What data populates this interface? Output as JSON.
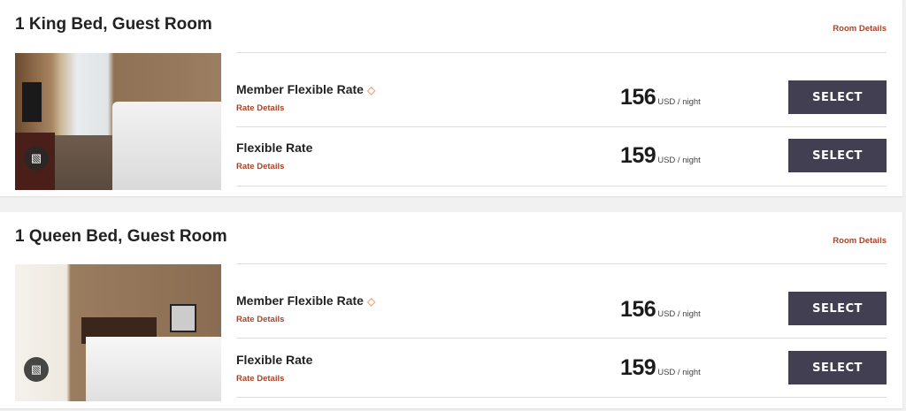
{
  "rooms": [
    {
      "title": "1 King Bed, Guest Room",
      "room_details": "Room Details",
      "image_icon": "gallery-icon",
      "rates": [
        {
          "name": "Member Flexible Rate",
          "icon": "tag-icon",
          "details": "Rate Details",
          "price": "156",
          "unit": "USD / night",
          "button": "SELECT"
        },
        {
          "name": "Flexible Rate",
          "details": "Rate Details",
          "price": "159",
          "unit": "USD / night",
          "button": "SELECT"
        }
      ]
    },
    {
      "title": "1 Queen Bed, Guest Room",
      "room_details": "Room Details",
      "image_icon": "gallery-icon",
      "rates": [
        {
          "name": "Member Flexible Rate",
          "icon": "tag-icon",
          "details": "Rate Details",
          "price": "156",
          "unit": "USD / night",
          "button": "SELECT"
        },
        {
          "name": "Flexible Rate",
          "details": "Rate Details",
          "price": "159",
          "unit": "USD / night",
          "button": "SELECT"
        }
      ]
    }
  ],
  "colors": {
    "accent": "#a3452a",
    "button": "#433f53",
    "tag": "#e8a97f"
  }
}
